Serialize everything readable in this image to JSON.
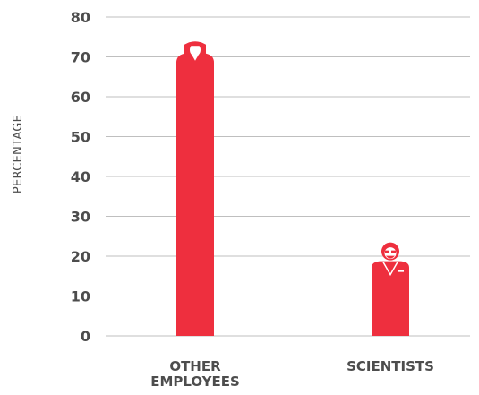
{
  "chart_data": {
    "type": "bar",
    "categories": [
      [
        "OTHER",
        "EMPLOYEES"
      ],
      [
        "SCIENTISTS"
      ]
    ],
    "values": [
      74,
      23
    ],
    "ylabel": "PERCENTAGE",
    "ylim": [
      0,
      80
    ],
    "yticks": [
      "0",
      "10",
      "20",
      "30",
      "40",
      "50",
      "60",
      "70",
      "80"
    ],
    "grid": true,
    "bar_color": "#EE2F3E",
    "grid_color": "#BFBFBF",
    "text_color": "#4D4D4D",
    "bar_icons": [
      "woman-figure-icon",
      "scientist-figure-icon"
    ]
  }
}
